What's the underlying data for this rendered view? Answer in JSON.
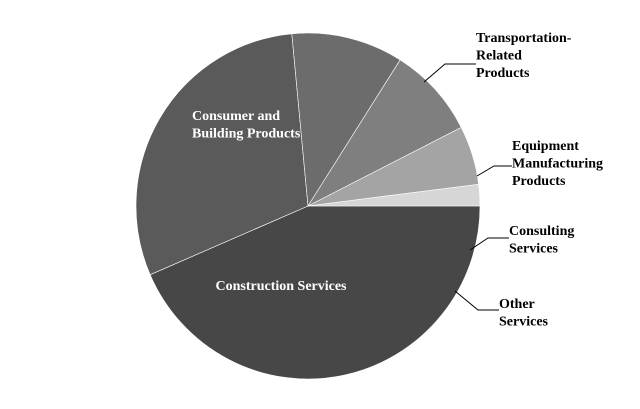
{
  "chart_data": {
    "type": "pie",
    "title": "",
    "slices": [
      {
        "name": "Construction Services",
        "label_lines": [
          "Construction Services"
        ],
        "value": 43.5,
        "color": "#474747"
      },
      {
        "name": "Consumer and Building Products",
        "label_lines": [
          "Consumer and",
          "Building Products"
        ],
        "value": 30.0,
        "color": "#5a5a5a"
      },
      {
        "name": "Transportation-Related Products",
        "label_lines": [
          "Transportation-",
          "Related",
          "Products"
        ],
        "value": 10.5,
        "color": "#6c6c6c"
      },
      {
        "name": "Equipment Manufacturing Products",
        "label_lines": [
          "Equipment",
          "Manufacturing",
          "Products"
        ],
        "value": 8.5,
        "color": "#7f7f7f"
      },
      {
        "name": "Consulting Services",
        "label_lines": [
          "Consulting",
          "Services"
        ],
        "value": 5.5,
        "color": "#a4a4a4"
      },
      {
        "name": "Other Services",
        "label_lines": [
          "Other",
          "Services"
        ],
        "value": 2.0,
        "color": "#d6d6d6"
      }
    ],
    "start_angle_deg": 0,
    "direction": "clockwise",
    "legend": "none",
    "label_placement": [
      "inside",
      "inside",
      "outside",
      "outside",
      "outside",
      "outside"
    ]
  }
}
